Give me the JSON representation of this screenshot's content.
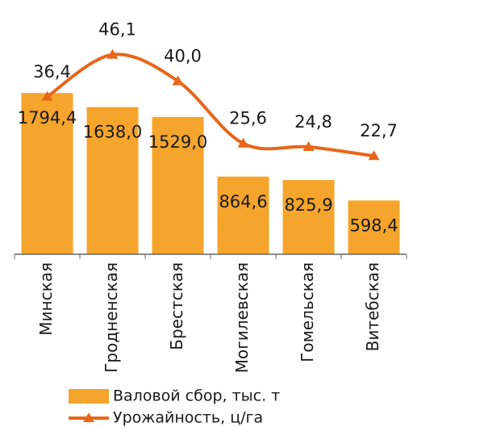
{
  "chart_data": {
    "type": "bar-line",
    "categories": [
      "Минская",
      "Гродненская",
      "Брестская",
      "Могилевская",
      "Гомельская",
      "Витебская"
    ],
    "series": [
      {
        "name": "Валовой сбор, тыс. т",
        "type": "bar",
        "color": "#f5a52b",
        "values": [
          1794.4,
          1638.0,
          1529.0,
          864.6,
          825.9,
          598.4
        ],
        "value_labels": [
          "1794,4",
          "1638,0",
          "1529,0",
          "864,6",
          "825,9",
          "598,4"
        ]
      },
      {
        "name": "Урожайность, ц/га",
        "type": "line",
        "axis": "y2",
        "color": "#e8661a",
        "values": [
          36.4,
          46.1,
          40.0,
          25.6,
          24.8,
          22.7
        ],
        "value_labels": [
          "36,4",
          "46,1",
          "40,0",
          "25,6",
          "24,8",
          "22,7"
        ]
      }
    ],
    "ylim": [
      0,
      2650
    ],
    "y2lim": [
      0,
      55
    ]
  }
}
